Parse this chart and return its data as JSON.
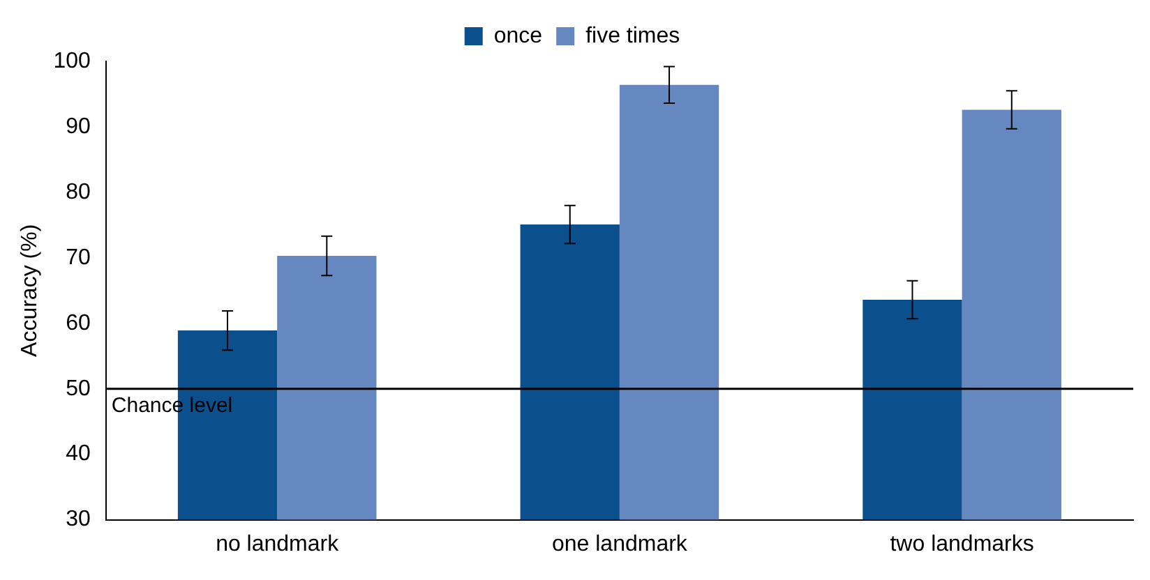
{
  "chart_data": {
    "type": "bar",
    "ylabel": "Accuracy (%)",
    "categories": [
      "no landmark",
      "one landmark",
      "two landmarks"
    ],
    "series": [
      {
        "name": "once",
        "color": "#0b4f8c",
        "values": [
          58.9,
          75.1,
          63.6
        ],
        "errors": [
          3,
          2.9,
          2.9
        ]
      },
      {
        "name": "five times",
        "color": "#6688c0",
        "values": [
          70.3,
          96.4,
          92.6
        ],
        "errors": [
          3,
          2.8,
          2.9
        ]
      }
    ],
    "ylim": [
      30,
      100
    ],
    "yticks": [
      30,
      40,
      50,
      60,
      70,
      80,
      90,
      100
    ],
    "grid": false,
    "legend": "top",
    "ref_lines": [
      {
        "axis": "y",
        "value": 50,
        "label": "Chance level",
        "color": "#000000"
      }
    ]
  }
}
